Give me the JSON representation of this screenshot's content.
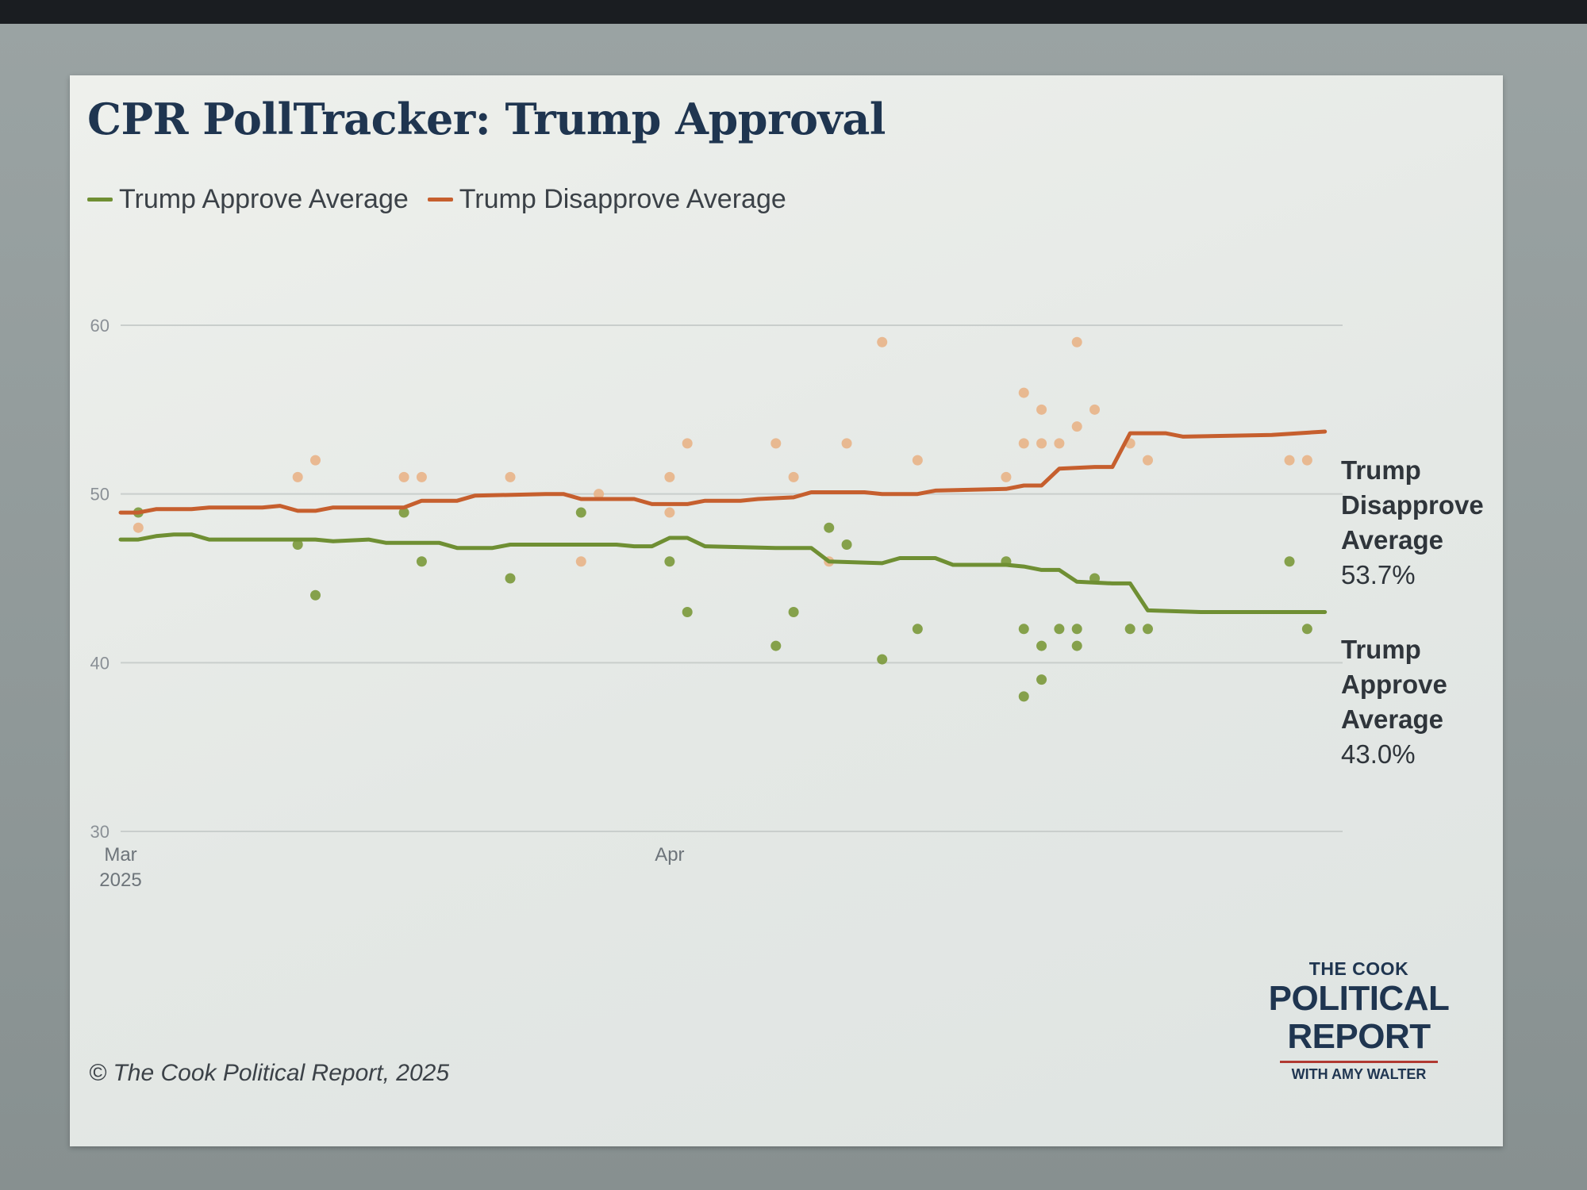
{
  "title": "CPR PollTracker: Trump Approval",
  "legend": [
    {
      "label": "Trump Approve Average",
      "color": "#6f8f33"
    },
    {
      "label": "Trump Disapprove Average",
      "color": "#c65f2e"
    }
  ],
  "end_labels": {
    "disapprove": {
      "name": "Trump\nDisapprove\nAverage",
      "value": "53.7%"
    },
    "approve": {
      "name": "Trump\nApprove\nAverage",
      "value": "43.0%"
    }
  },
  "credit": "© The Cook Political Report, 2025",
  "logo": {
    "top": "THE COOK",
    "line1": "POLITICAL",
    "line2": "REPORT",
    "sub": "WITH AMY WALTER"
  },
  "chart_data": {
    "type": "line",
    "title": "CPR PollTracker: Trump Approval",
    "xlabel": "",
    "ylabel": "",
    "ylim": [
      30,
      60
    ],
    "yticks": [
      30,
      40,
      50,
      60
    ],
    "xlim": [
      "2025-03-01",
      "2025-05-09"
    ],
    "xticks": [
      {
        "date": "2025-03-01",
        "label": "Mar",
        "sublabel": "2025"
      },
      {
        "date": "2025-04-01",
        "label": "Apr",
        "sublabel": ""
      }
    ],
    "grid": true,
    "legend_position": "top-left",
    "series": [
      {
        "name": "Trump Approve Average",
        "color": "#6f8f33",
        "points": [
          [
            "2025-03-01",
            47.3
          ],
          [
            "2025-03-02",
            47.3
          ],
          [
            "2025-03-03",
            47.5
          ],
          [
            "2025-03-04",
            47.6
          ],
          [
            "2025-03-05",
            47.6
          ],
          [
            "2025-03-06",
            47.3
          ],
          [
            "2025-03-11",
            47.3
          ],
          [
            "2025-03-12",
            47.3
          ],
          [
            "2025-03-13",
            47.2
          ],
          [
            "2025-03-15",
            47.3
          ],
          [
            "2025-03-16",
            47.1
          ],
          [
            "2025-03-19",
            47.1
          ],
          [
            "2025-03-20",
            46.8
          ],
          [
            "2025-03-22",
            46.8
          ],
          [
            "2025-03-23",
            47.0
          ],
          [
            "2025-03-29",
            47.0
          ],
          [
            "2025-03-30",
            46.9
          ],
          [
            "2025-03-31",
            46.9
          ],
          [
            "2025-04-01",
            47.4
          ],
          [
            "2025-04-02",
            47.4
          ],
          [
            "2025-04-03",
            46.9
          ],
          [
            "2025-04-07",
            46.8
          ],
          [
            "2025-04-09",
            46.8
          ],
          [
            "2025-04-10",
            46.0
          ],
          [
            "2025-04-13",
            45.9
          ],
          [
            "2025-04-14",
            46.2
          ],
          [
            "2025-04-16",
            46.2
          ],
          [
            "2025-04-17",
            45.8
          ],
          [
            "2025-04-20",
            45.8
          ],
          [
            "2025-04-21",
            45.7
          ],
          [
            "2025-04-22",
            45.5
          ],
          [
            "2025-04-23",
            45.5
          ],
          [
            "2025-04-24",
            44.8
          ],
          [
            "2025-04-26",
            44.7
          ],
          [
            "2025-04-27",
            44.7
          ],
          [
            "2025-04-28",
            43.1
          ],
          [
            "2025-05-01",
            43.0
          ],
          [
            "2025-05-08",
            43.0
          ]
        ]
      },
      {
        "name": "Trump Disapprove Average",
        "color": "#c65f2e",
        "points": [
          [
            "2025-03-01",
            48.9
          ],
          [
            "2025-03-02",
            48.9
          ],
          [
            "2025-03-03",
            49.1
          ],
          [
            "2025-03-05",
            49.1
          ],
          [
            "2025-03-06",
            49.2
          ],
          [
            "2025-03-09",
            49.2
          ],
          [
            "2025-03-10",
            49.3
          ],
          [
            "2025-03-11",
            49.0
          ],
          [
            "2025-03-12",
            49.0
          ],
          [
            "2025-03-13",
            49.2
          ],
          [
            "2025-03-16",
            49.2
          ],
          [
            "2025-03-17",
            49.2
          ],
          [
            "2025-03-18",
            49.6
          ],
          [
            "2025-03-20",
            49.6
          ],
          [
            "2025-03-21",
            49.9
          ],
          [
            "2025-03-25",
            50.0
          ],
          [
            "2025-03-26",
            50.0
          ],
          [
            "2025-03-27",
            49.7
          ],
          [
            "2025-03-30",
            49.7
          ],
          [
            "2025-03-31",
            49.4
          ],
          [
            "2025-04-02",
            49.4
          ],
          [
            "2025-04-03",
            49.6
          ],
          [
            "2025-04-05",
            49.6
          ],
          [
            "2025-04-06",
            49.7
          ],
          [
            "2025-04-08",
            49.8
          ],
          [
            "2025-04-09",
            50.1
          ],
          [
            "2025-04-12",
            50.1
          ],
          [
            "2025-04-13",
            50.0
          ],
          [
            "2025-04-15",
            50.0
          ],
          [
            "2025-04-16",
            50.2
          ],
          [
            "2025-04-20",
            50.3
          ],
          [
            "2025-04-21",
            50.5
          ],
          [
            "2025-04-22",
            50.5
          ],
          [
            "2025-04-23",
            51.5
          ],
          [
            "2025-04-25",
            51.6
          ],
          [
            "2025-04-26",
            51.6
          ],
          [
            "2025-04-27",
            53.6
          ],
          [
            "2025-04-29",
            53.6
          ],
          [
            "2025-04-30",
            53.4
          ],
          [
            "2025-05-05",
            53.5
          ],
          [
            "2025-05-08",
            53.7
          ]
        ]
      }
    ],
    "scatter": [
      {
        "name": "Approve polls",
        "color": "#7d9a3e",
        "points": [
          [
            "2025-03-02",
            48.9
          ],
          [
            "2025-03-11",
            47.0
          ],
          [
            "2025-03-12",
            44.0
          ],
          [
            "2025-03-17",
            48.9
          ],
          [
            "2025-03-18",
            46.0
          ],
          [
            "2025-03-23",
            45.0
          ],
          [
            "2025-03-27",
            48.9
          ],
          [
            "2025-04-01",
            46.0
          ],
          [
            "2025-04-02",
            43.0
          ],
          [
            "2025-04-07",
            41.0
          ],
          [
            "2025-04-08",
            43.0
          ],
          [
            "2025-04-10",
            48.0
          ],
          [
            "2025-04-11",
            47.0
          ],
          [
            "2025-04-13",
            40.2
          ],
          [
            "2025-04-15",
            42.0
          ],
          [
            "2025-04-20",
            46.0
          ],
          [
            "2025-04-21",
            42.0
          ],
          [
            "2025-04-21",
            38.0
          ],
          [
            "2025-04-22",
            41.0
          ],
          [
            "2025-04-22",
            39.0
          ],
          [
            "2025-04-23",
            42.0
          ],
          [
            "2025-04-24",
            42.0
          ],
          [
            "2025-04-24",
            41.0
          ],
          [
            "2025-04-25",
            45.0
          ],
          [
            "2025-04-27",
            42.0
          ],
          [
            "2025-04-28",
            42.0
          ],
          [
            "2025-05-06",
            46.0
          ],
          [
            "2025-05-07",
            42.0
          ]
        ]
      },
      {
        "name": "Disapprove polls",
        "color": "#e8b48a",
        "points": [
          [
            "2025-03-02",
            48.0
          ],
          [
            "2025-03-11",
            51.0
          ],
          [
            "2025-03-12",
            52.0
          ],
          [
            "2025-03-17",
            51.0
          ],
          [
            "2025-03-18",
            51.0
          ],
          [
            "2025-03-23",
            51.0
          ],
          [
            "2025-03-27",
            46.0
          ],
          [
            "2025-03-28",
            50.0
          ],
          [
            "2025-04-01",
            51.0
          ],
          [
            "2025-04-01",
            48.9
          ],
          [
            "2025-04-02",
            53.0
          ],
          [
            "2025-04-07",
            53.0
          ],
          [
            "2025-04-08",
            51.0
          ],
          [
            "2025-04-10",
            46.0
          ],
          [
            "2025-04-11",
            53.0
          ],
          [
            "2025-04-13",
            59.0
          ],
          [
            "2025-04-15",
            52.0
          ],
          [
            "2025-04-20",
            51.0
          ],
          [
            "2025-04-21",
            56.0
          ],
          [
            "2025-04-21",
            53.0
          ],
          [
            "2025-04-22",
            55.0
          ],
          [
            "2025-04-22",
            53.0
          ],
          [
            "2025-04-23",
            53.0
          ],
          [
            "2025-04-24",
            54.0
          ],
          [
            "2025-04-24",
            59.0
          ],
          [
            "2025-04-25",
            55.0
          ],
          [
            "2025-04-27",
            53.0
          ],
          [
            "2025-04-28",
            52.0
          ],
          [
            "2025-05-06",
            52.0
          ],
          [
            "2025-05-07",
            52.0
          ]
        ]
      }
    ]
  }
}
